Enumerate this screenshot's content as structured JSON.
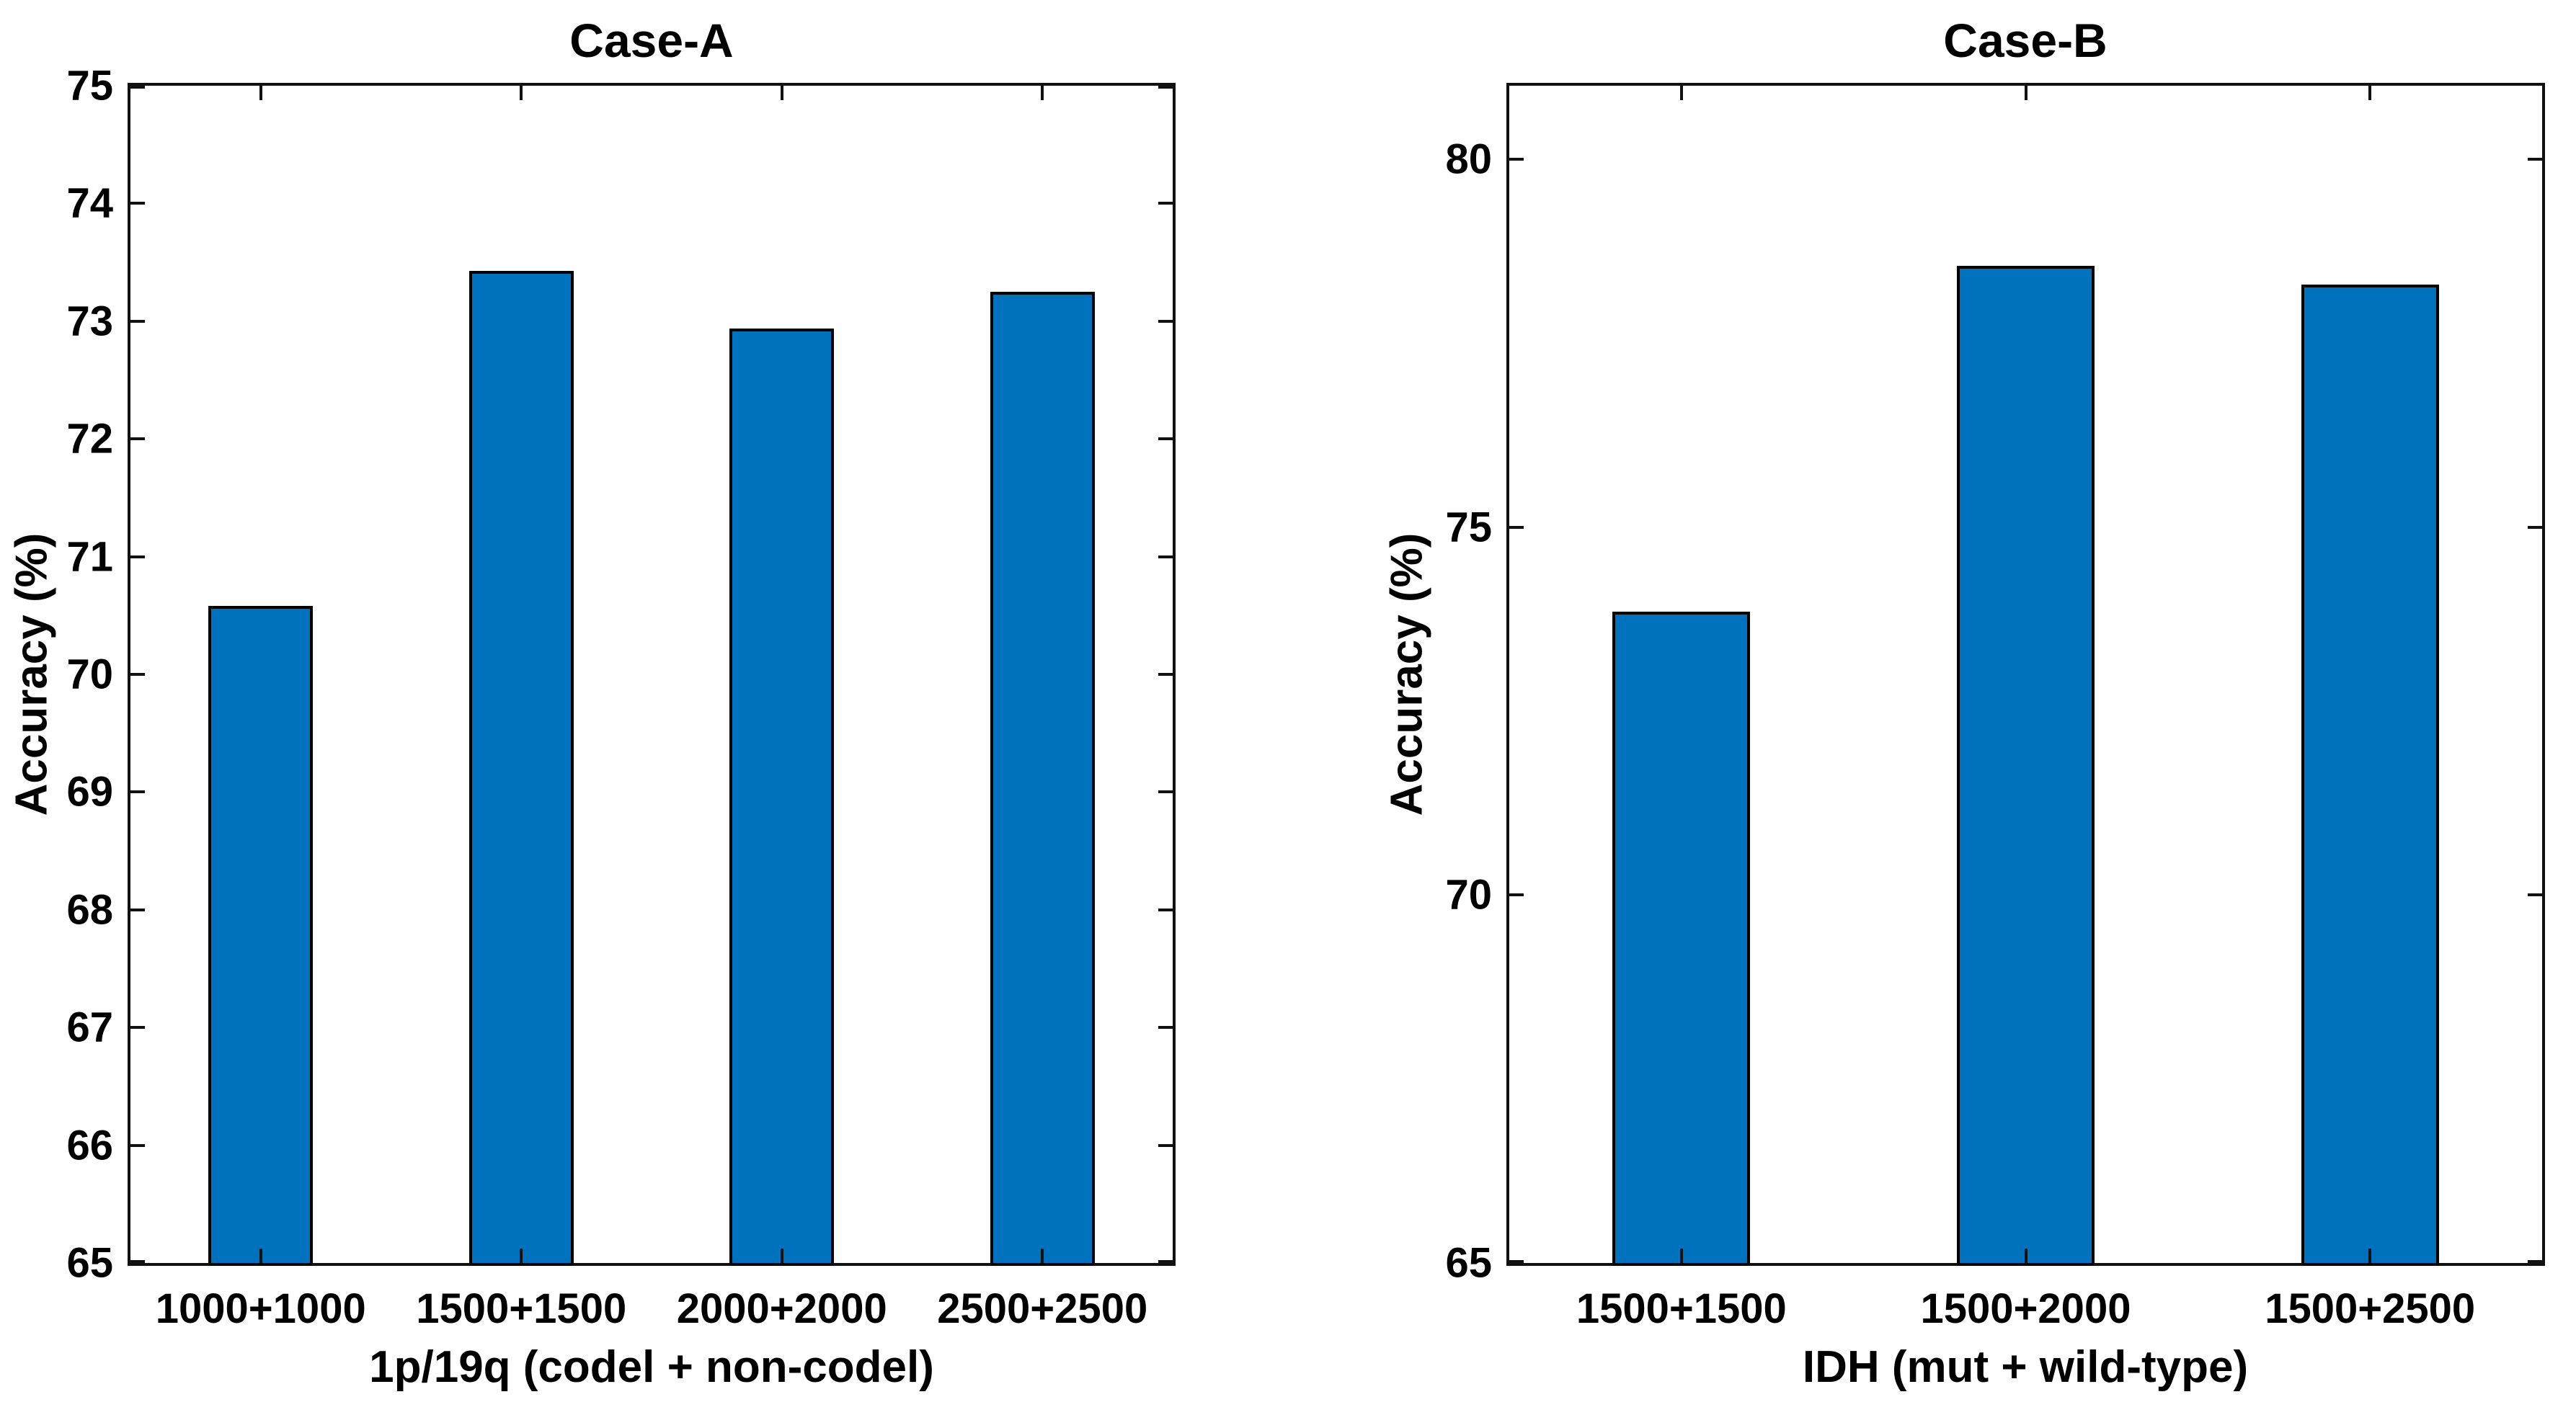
{
  "chart_data": [
    {
      "type": "bar",
      "title": "Case-A",
      "xlabel": "1p/19q (codel + non-codel)",
      "ylabel": "Accuracy (%)",
      "categories": [
        "1000+1000",
        "1500+1500",
        "2000+2000",
        "2500+2500"
      ],
      "values": [
        70.58,
        73.43,
        72.94,
        73.25
      ],
      "ylim": [
        65,
        75
      ],
      "yticks": [
        65,
        66,
        67,
        68,
        69,
        70,
        71,
        72,
        73,
        74,
        75
      ],
      "bar_color": "#0072BD",
      "bar_edge_color": "#000000",
      "axis_color": "#111111",
      "bar_width_frac": 0.4,
      "grid": false,
      "legend": null
    },
    {
      "type": "bar",
      "title": "Case-B",
      "xlabel": "IDH (mut + wild-type)",
      "ylabel": "Accuracy (%)",
      "categories": [
        "1500+1500",
        "1500+2000",
        "1500+2500"
      ],
      "values": [
        73.85,
        78.55,
        78.3
      ],
      "ylim": [
        65,
        81
      ],
      "yticks": [
        65,
        70,
        75,
        80
      ],
      "bar_color": "#0072BD",
      "bar_edge_color": "#000000",
      "axis_color": "#111111",
      "bar_width_frac": 0.4,
      "grid": false,
      "legend": null
    }
  ]
}
